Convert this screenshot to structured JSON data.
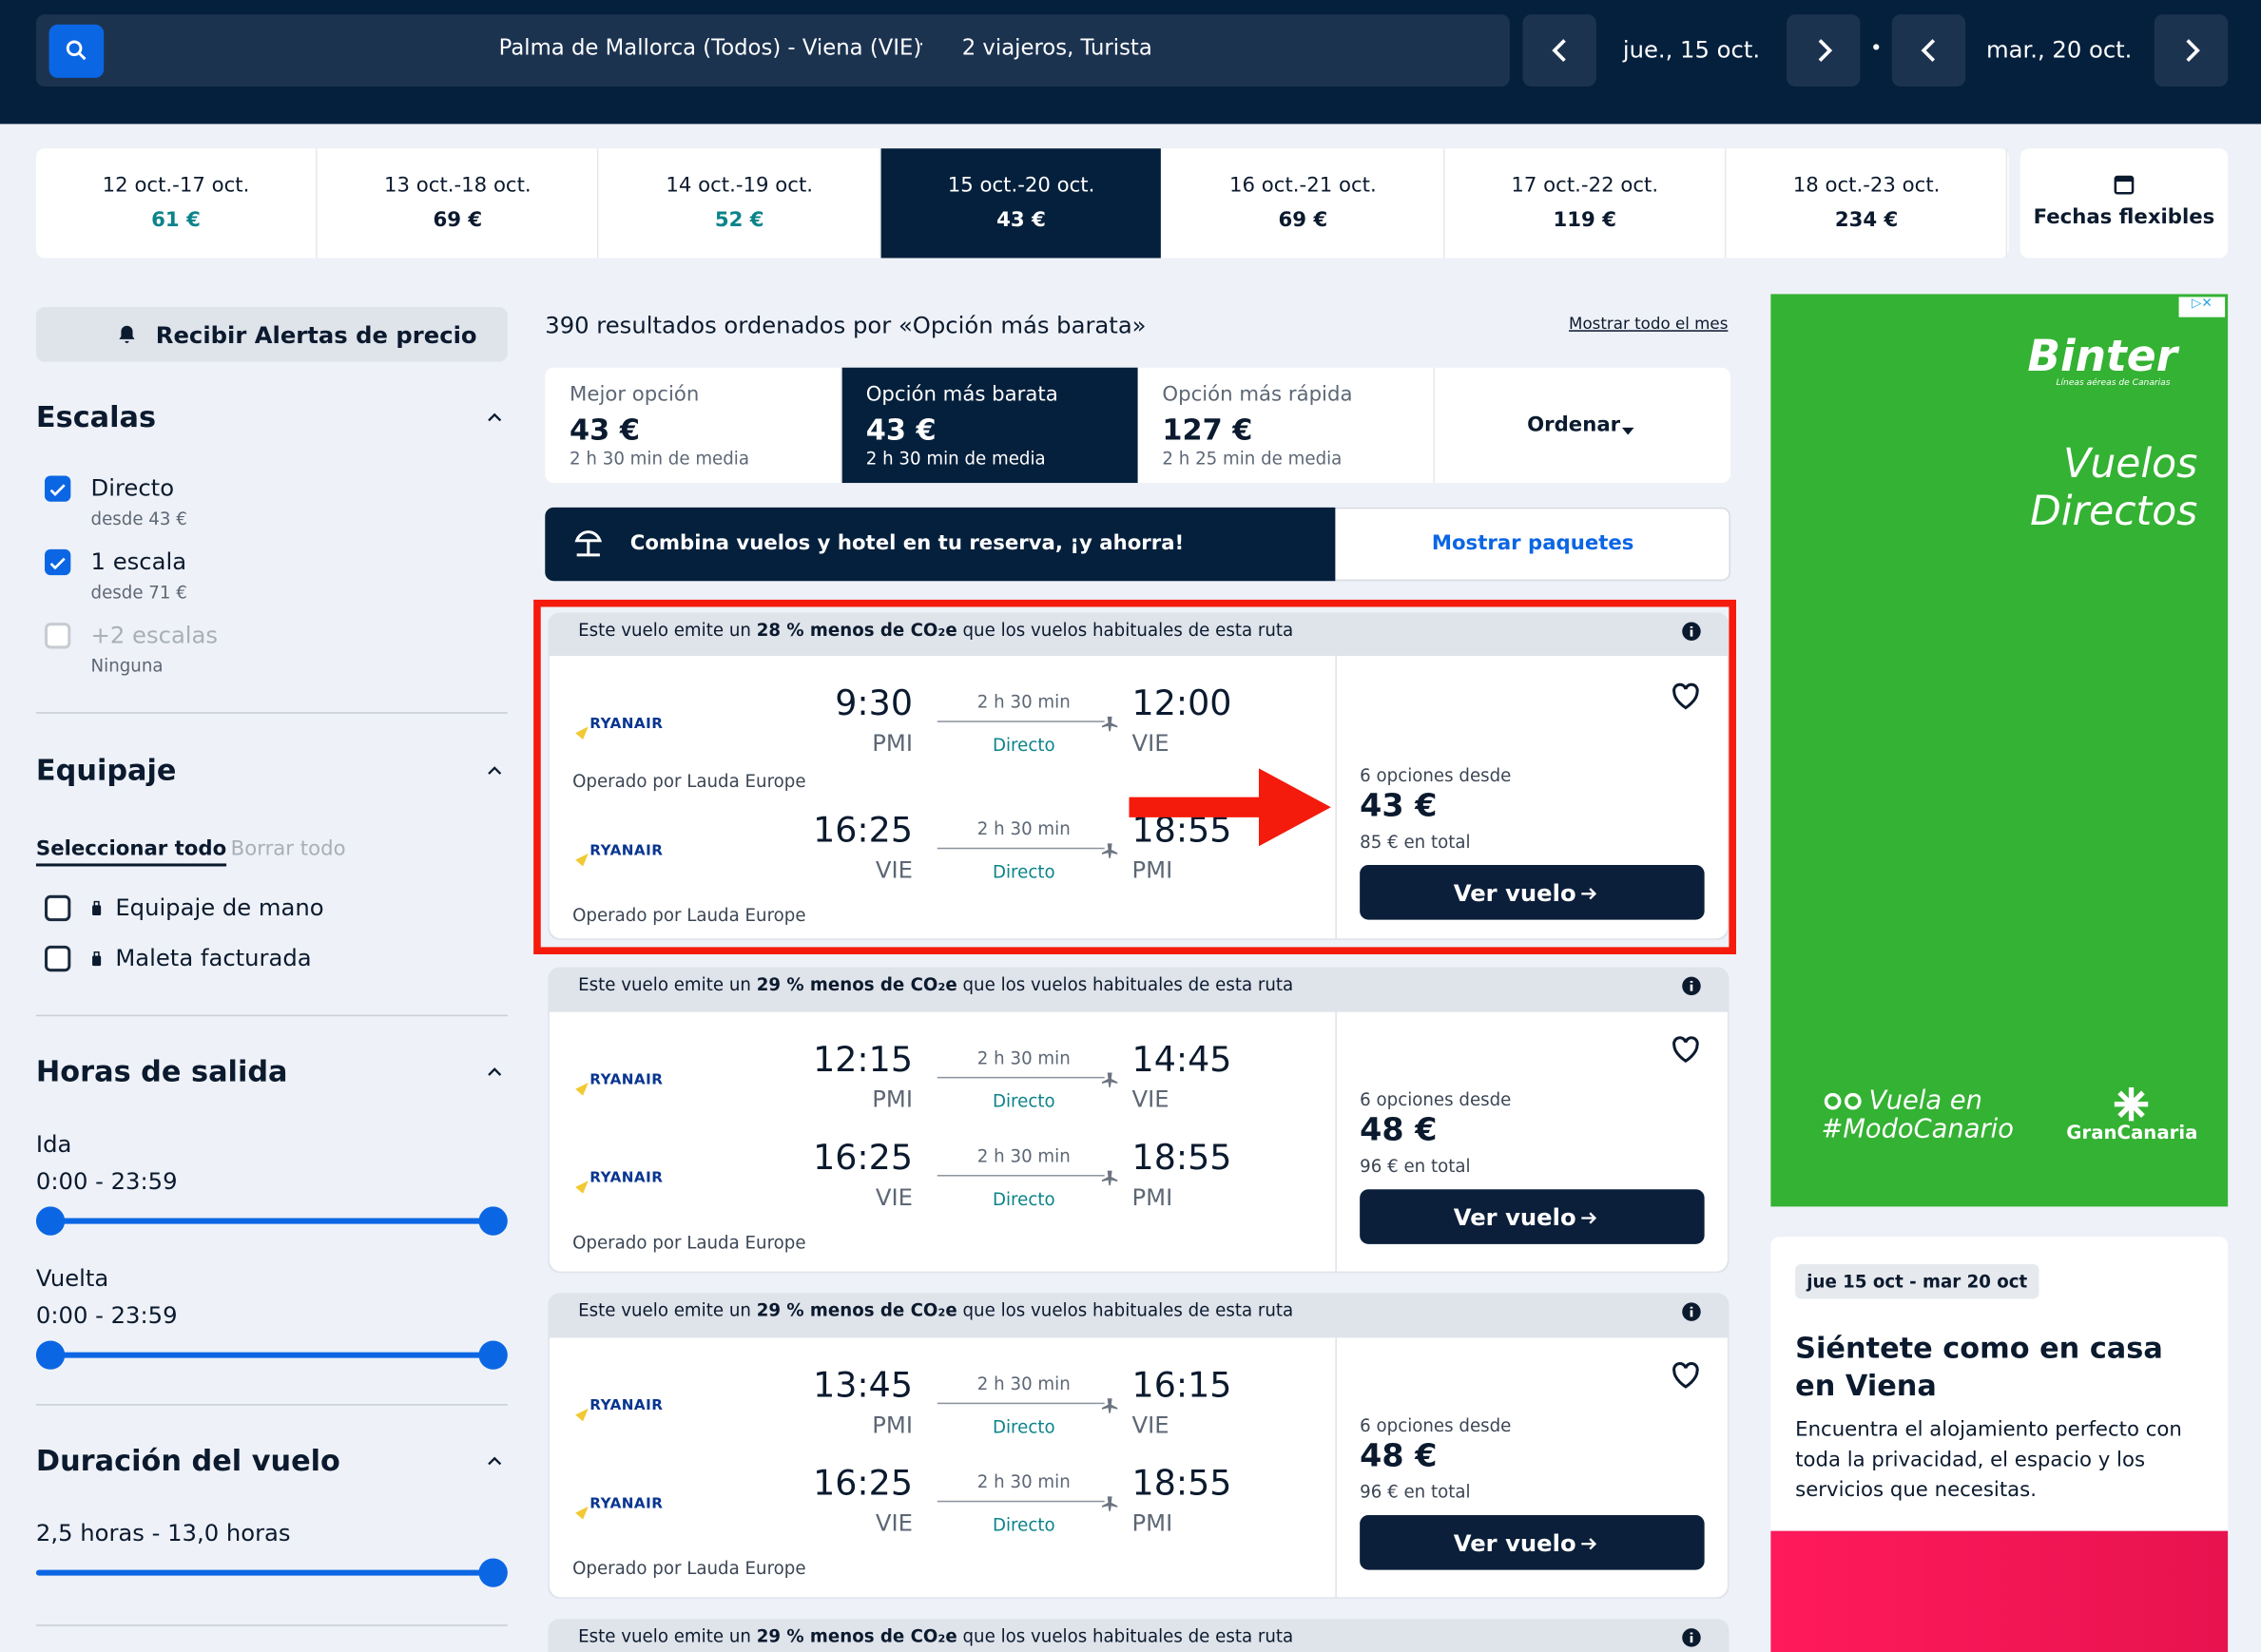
{
  "header": {
    "route": "Palma de Mallorca (Todos) - Viena (VIE)",
    "travelers": "2 viajeros, Turista",
    "depart": "jue., 15 oct.",
    "return": "mar., 20 oct."
  },
  "date_tabs": [
    {
      "dates": "12 oct.-17 oct.",
      "price": "61 €"
    },
    {
      "dates": "13 oct.-18 oct.",
      "price": "69 €"
    },
    {
      "dates": "14 oct.-19 oct.",
      "price": "52 €"
    },
    {
      "dates": "15 oct.-20 oct.",
      "price": "43 €"
    },
    {
      "dates": "16 oct.-21 oct.",
      "price": "69 €"
    },
    {
      "dates": "17 oct.-22 oct.",
      "price": "119 €"
    },
    {
      "dates": "18 oct.-23 oct.",
      "price": "234 €"
    }
  ],
  "flexible_dates": "Fechas flexibles",
  "sidebar": {
    "alert_button": "Recibir Alertas de precio",
    "stops": {
      "title": "Escalas",
      "options": [
        {
          "label": "Directo",
          "sub": "desde 43 €"
        },
        {
          "label": "1 escala",
          "sub": "desde 71 €"
        },
        {
          "label": "+2 escalas",
          "sub": "Ninguna"
        }
      ]
    },
    "baggage": {
      "title": "Equipaje",
      "select_all": "Seleccionar todo",
      "clear_all": "Borrar todo",
      "options": [
        "Equipaje de mano",
        "Maleta facturada"
      ]
    },
    "departure": {
      "title": "Horas de salida",
      "outbound_label": "Ida",
      "outbound_range": "0:00 - 23:59",
      "return_label": "Vuelta",
      "return_range": "0:00 - 23:59"
    },
    "duration": {
      "title": "Duración del vuelo",
      "range": "2,5 horas - 13,0 horas"
    }
  },
  "results": {
    "summary": "390 resultados ordenados por «Opción más barata»",
    "show_month": "Mostrar todo el mes",
    "sort_tabs": [
      {
        "label": "Mejor opción",
        "price": "43 €",
        "sub": "2 h 30 min de media"
      },
      {
        "label": "Opción más barata",
        "price": "43 €",
        "sub": "2 h 30 min de media"
      },
      {
        "label": "Opción más rápida",
        "price": "127 €",
        "sub": "2 h 25 min de media"
      }
    ],
    "sort_button": "Ordenar",
    "promo_text": "Combina vuelos y hotel en tu reserva, ¡y ahorra!",
    "promo_button": "Mostrar paquetes"
  },
  "flights": [
    {
      "co2": [
        "Este vuelo emite un ",
        "28 % menos de CO₂e",
        " que los vuelos habituales de esta ruta"
      ],
      "legs": [
        {
          "airline": "RYANAIR",
          "dep_time": "9:30",
          "dep_airport": "PMI",
          "duration": "2 h 30 min",
          "stops": "Directo",
          "arr_time": "12:00",
          "arr_airport": "VIE",
          "operated": "Operado por Lauda Europe"
        },
        {
          "airline": "RYANAIR",
          "dep_time": "16:25",
          "dep_airport": "VIE",
          "duration": "2 h 30 min",
          "stops": "Directo",
          "arr_time": "18:55",
          "arr_airport": "PMI",
          "operated": "Operado por Lauda Europe"
        }
      ],
      "options": "6 opciones desde",
      "price": "43 €",
      "total": "85 € en total",
      "button": "Ver vuelo"
    },
    {
      "co2": [
        "Este vuelo emite un ",
        "29 % menos de CO₂e",
        " que los vuelos habituales de esta ruta"
      ],
      "legs": [
        {
          "airline": "RYANAIR",
          "dep_time": "12:15",
          "dep_airport": "PMI",
          "duration": "2 h 30 min",
          "stops": "Directo",
          "arr_time": "14:45",
          "arr_airport": "VIE"
        },
        {
          "airline": "RYANAIR",
          "dep_time": "16:25",
          "dep_airport": "VIE",
          "duration": "2 h 30 min",
          "stops": "Directo",
          "arr_time": "18:55",
          "arr_airport": "PMI",
          "operated": "Operado por Lauda Europe"
        }
      ],
      "options": "6 opciones desde",
      "price": "48 €",
      "total": "96 € en total",
      "button": "Ver vuelo"
    },
    {
      "co2": [
        "Este vuelo emite un ",
        "29 % menos de CO₂e",
        " que los vuelos habituales de esta ruta"
      ],
      "legs": [
        {
          "airline": "RYANAIR",
          "dep_time": "13:45",
          "dep_airport": "PMI",
          "duration": "2 h 30 min",
          "stops": "Directo",
          "arr_time": "16:15",
          "arr_airport": "VIE"
        },
        {
          "airline": "RYANAIR",
          "dep_time": "16:25",
          "dep_airport": "VIE",
          "duration": "2 h 30 min",
          "stops": "Directo",
          "arr_time": "18:55",
          "arr_airport": "PMI",
          "operated": "Operado por Lauda Europe"
        }
      ],
      "options": "6 opciones desde",
      "price": "48 €",
      "total": "96 € en total",
      "button": "Ver vuelo"
    },
    {
      "co2": [
        "Este vuelo emite un ",
        "29 % menos de CO₂e",
        " que los vuelos habituales de esta ruta"
      ]
    }
  ],
  "ad": {
    "brand": "Binter",
    "brand_sub": "Líneas aéreas de Canarias",
    "headline": [
      "Vuelos",
      "Directos"
    ],
    "slogan": [
      "Vuela en",
      "#ModoCanario"
    ],
    "partner": "GranCanaria"
  },
  "hotel_card": {
    "tag": "jue 15 oct - mar 20 oct",
    "title": "Siéntete como en casa en Viena",
    "text": "Encuentra el alojamiento perfecto con toda la privacidad, el espacio y los servicios que necesitas."
  }
}
